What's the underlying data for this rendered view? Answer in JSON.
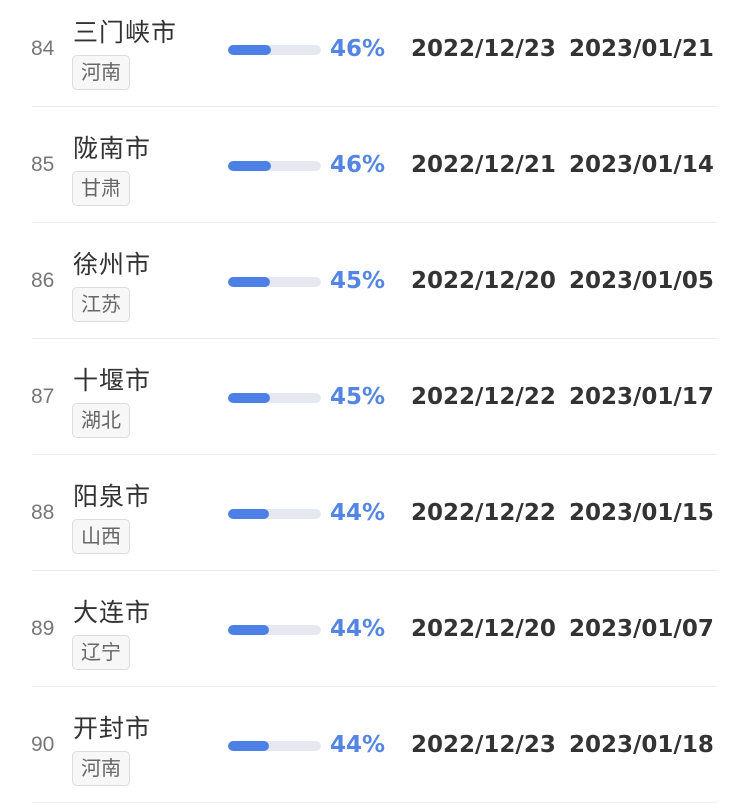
{
  "rows": [
    {
      "rank": "84",
      "city": "三门峡市",
      "province": "河南",
      "percent": 46,
      "percent_label": "46%",
      "date_start": "2022/12/23",
      "date_end": "2023/01/21"
    },
    {
      "rank": "85",
      "city": "陇南市",
      "province": "甘肃",
      "percent": 46,
      "percent_label": "46%",
      "date_start": "2022/12/21",
      "date_end": "2023/01/14"
    },
    {
      "rank": "86",
      "city": "徐州市",
      "province": "江苏",
      "percent": 45,
      "percent_label": "45%",
      "date_start": "2022/12/20",
      "date_end": "2023/01/05"
    },
    {
      "rank": "87",
      "city": "十堰市",
      "province": "湖北",
      "percent": 45,
      "percent_label": "45%",
      "date_start": "2022/12/22",
      "date_end": "2023/01/17"
    },
    {
      "rank": "88",
      "city": "阳泉市",
      "province": "山西",
      "percent": 44,
      "percent_label": "44%",
      "date_start": "2022/12/22",
      "date_end": "2023/01/15"
    },
    {
      "rank": "89",
      "city": "大连市",
      "province": "辽宁",
      "percent": 44,
      "percent_label": "44%",
      "date_start": "2022/12/20",
      "date_end": "2023/01/07"
    },
    {
      "rank": "90",
      "city": "开封市",
      "province": "河南",
      "percent": 44,
      "percent_label": "44%",
      "date_start": "2022/12/23",
      "date_end": "2023/01/18"
    }
  ],
  "colors": {
    "accent": "#4d80e6"
  }
}
